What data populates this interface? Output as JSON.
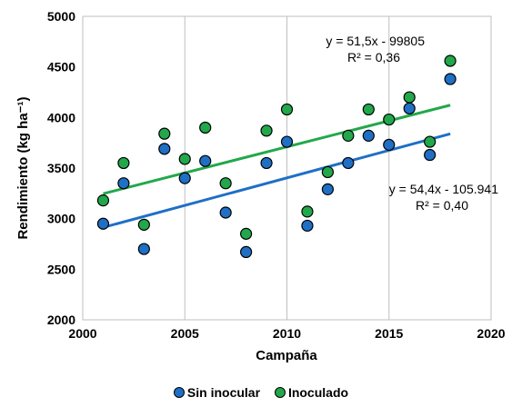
{
  "chart_data": {
    "type": "scatter",
    "xlabel": "Campaña",
    "ylabel": "Rendimiento (kg ha⁻¹)",
    "xlim": [
      2000,
      2020
    ],
    "ylim": [
      2000,
      5000
    ],
    "xticks": [
      "2000",
      "2005",
      "2010",
      "2015",
      "2020"
    ],
    "yticks": [
      "2000",
      "2500",
      "3000",
      "3500",
      "4000",
      "4500",
      "5000"
    ],
    "grid": "vertical",
    "legend_position": "bottom",
    "series": [
      {
        "name": "Sin inocular",
        "color": "#1f6fc5",
        "x": [
          2001,
          2002,
          2003,
          2004,
          2005,
          2006,
          2007,
          2008,
          2009,
          2010,
          2011,
          2012,
          2013,
          2014,
          2015,
          2016,
          2017,
          2018
        ],
        "y": [
          2950,
          3350,
          2700,
          3690,
          3400,
          3570,
          3060,
          2670,
          3550,
          3760,
          2930,
          3290,
          3550,
          3820,
          3730,
          4090,
          3630,
          4380
        ],
        "trendline": {
          "slope": 54.4,
          "intercept": -105941,
          "x_range": [
            2001,
            2018
          ],
          "color": "#1f6fc5",
          "equation": "y = 54,4x - 105.941",
          "r2": "R² = 0,40"
        }
      },
      {
        "name": "Inoculado",
        "color": "#22a84a",
        "x": [
          2001,
          2002,
          2003,
          2004,
          2005,
          2006,
          2007,
          2008,
          2009,
          2010,
          2011,
          2012,
          2013,
          2014,
          2015,
          2016,
          2017,
          2018
        ],
        "y": [
          3180,
          3550,
          2940,
          3840,
          3590,
          3900,
          3350,
          2850,
          3870,
          4080,
          3070,
          3460,
          3820,
          4080,
          3980,
          4200,
          3760,
          4560
        ],
        "trendline": {
          "slope": 51.5,
          "intercept": -99805,
          "x_range": [
            2001,
            2018
          ],
          "color": "#22a84a",
          "equation": "y = 51,5x - 99805",
          "r2": "R² = 0,36"
        }
      }
    ]
  }
}
